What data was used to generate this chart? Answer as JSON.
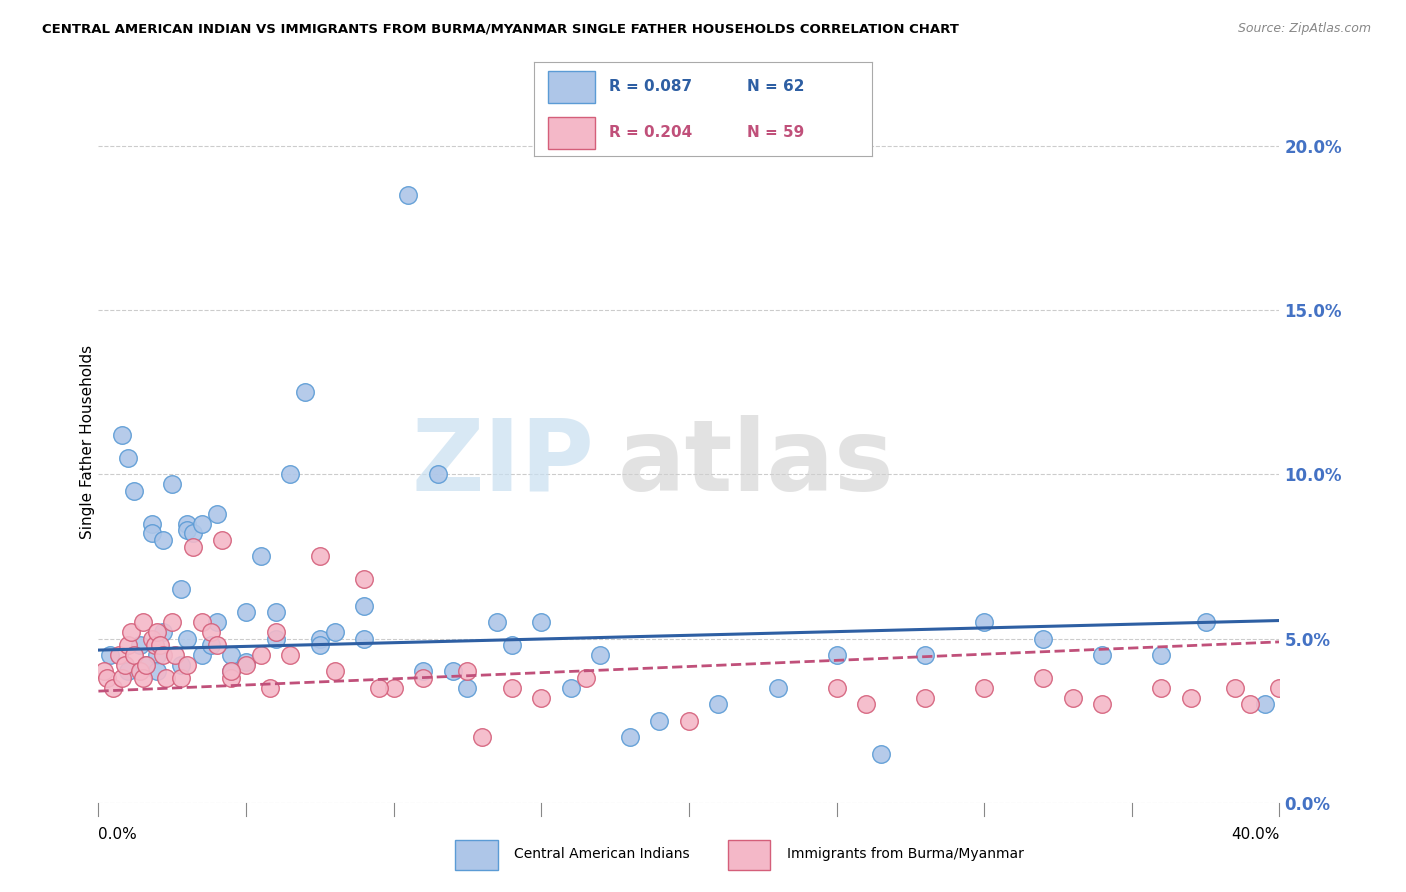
{
  "title": "CENTRAL AMERICAN INDIAN VS IMMIGRANTS FROM BURMA/MYANMAR SINGLE FATHER HOUSEHOLDS CORRELATION CHART",
  "source": "Source: ZipAtlas.com",
  "ylabel": "Single Father Households",
  "blue_color": "#aec6e8",
  "blue_edge": "#5b9bd5",
  "pink_color": "#f4b8c8",
  "pink_edge": "#d45f7a",
  "blue_line_color": "#2e5fa3",
  "pink_line_color": "#c0507a",
  "watermark_zip_color": "#c8dff0",
  "watermark_atlas_color": "#d0d0d0",
  "background_color": "#ffffff",
  "grid_color": "#cccccc",
  "right_label_color": "#4472c4",
  "xlim": [
    0,
    40
  ],
  "ylim": [
    0,
    22
  ],
  "ytick_vals": [
    0,
    5,
    10,
    15,
    20
  ],
  "ytick_labels": [
    "0.0%",
    "5.0%",
    "10.0%",
    "15.0%",
    "20.0%"
  ],
  "blue_line_x": [
    0,
    40
  ],
  "blue_line_y": [
    4.65,
    5.55
  ],
  "pink_line_x": [
    0,
    40
  ],
  "pink_line_y": [
    3.4,
    4.9
  ],
  "blue_scatter_x": [
    0.4,
    0.8,
    1.0,
    1.2,
    1.4,
    1.6,
    1.8,
    1.8,
    2.0,
    2.2,
    2.5,
    2.8,
    3.0,
    3.0,
    3.2,
    3.5,
    3.8,
    4.0,
    4.5,
    5.0,
    5.5,
    6.0,
    6.5,
    7.0,
    7.5,
    8.0,
    9.0,
    10.5,
    11.5,
    12.0,
    13.5,
    15.0,
    17.0,
    19.0,
    21.0,
    23.0,
    25.0,
    26.5,
    28.0,
    30.0,
    32.0,
    34.0,
    36.0,
    37.5,
    39.5,
    1.0,
    2.0,
    2.2,
    2.8,
    3.0,
    3.5,
    4.0,
    4.5,
    5.0,
    6.0,
    7.5,
    9.0,
    11.0,
    12.5,
    14.0,
    16.0,
    18.0
  ],
  "blue_scatter_y": [
    4.5,
    11.2,
    10.5,
    9.5,
    4.8,
    4.2,
    8.5,
    8.2,
    4.5,
    8.0,
    9.7,
    4.2,
    8.5,
    8.3,
    8.2,
    4.5,
    4.8,
    5.5,
    4.0,
    5.8,
    7.5,
    5.0,
    10.0,
    12.5,
    5.0,
    5.2,
    6.0,
    18.5,
    10.0,
    4.0,
    5.5,
    5.5,
    4.5,
    2.5,
    3.0,
    3.5,
    4.5,
    1.5,
    4.5,
    5.5,
    5.0,
    4.5,
    4.5,
    5.5,
    3.0,
    4.0,
    4.0,
    5.2,
    6.5,
    5.0,
    8.5,
    8.8,
    4.5,
    4.3,
    5.8,
    4.8,
    5.0,
    4.0,
    3.5,
    4.8,
    3.5,
    2.0
  ],
  "pink_scatter_x": [
    0.2,
    0.3,
    0.5,
    0.7,
    0.8,
    0.9,
    1.0,
    1.1,
    1.2,
    1.4,
    1.5,
    1.5,
    1.6,
    1.8,
    1.9,
    2.0,
    2.1,
    2.2,
    2.3,
    2.5,
    2.6,
    2.8,
    3.0,
    3.2,
    3.5,
    3.8,
    4.0,
    4.2,
    4.5,
    5.0,
    5.5,
    6.0,
    7.5,
    9.0,
    10.0,
    13.0,
    15.0,
    20.0,
    25.0,
    26.0,
    28.0,
    30.0,
    32.0,
    33.0,
    34.0,
    36.0,
    37.0,
    38.5,
    39.0,
    40.0,
    4.5,
    5.8,
    6.5,
    8.0,
    9.5,
    11.0,
    12.5,
    14.0,
    16.5
  ],
  "pink_scatter_y": [
    4.0,
    3.8,
    3.5,
    4.5,
    3.8,
    4.2,
    4.8,
    5.2,
    4.5,
    4.0,
    3.8,
    5.5,
    4.2,
    5.0,
    4.8,
    5.2,
    4.8,
    4.5,
    3.8,
    5.5,
    4.5,
    3.8,
    4.2,
    7.8,
    5.5,
    5.2,
    4.8,
    8.0,
    3.8,
    4.2,
    4.5,
    5.2,
    7.5,
    6.8,
    3.5,
    2.0,
    3.2,
    2.5,
    3.5,
    3.0,
    3.2,
    3.5,
    3.8,
    3.2,
    3.0,
    3.5,
    3.2,
    3.5,
    3.0,
    3.5,
    4.0,
    3.5,
    4.5,
    4.0,
    3.5,
    3.8,
    4.0,
    3.5,
    3.8
  ]
}
